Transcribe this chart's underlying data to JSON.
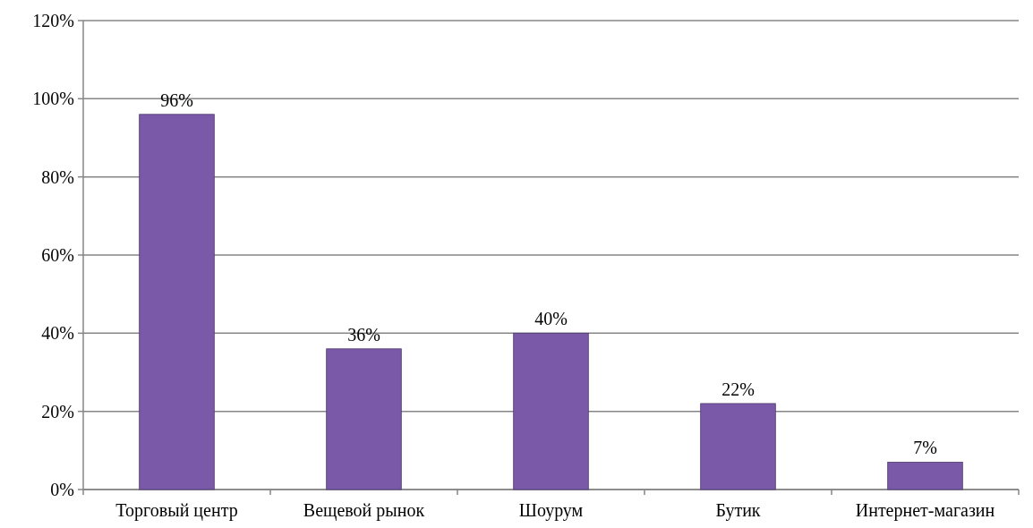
{
  "chart_data": {
    "type": "bar",
    "categories": [
      "Торговый центр",
      "Вещевой рынок",
      "Шоурум",
      "Бутик",
      "Интернет-магазин"
    ],
    "values": [
      96,
      36,
      40,
      22,
      7
    ],
    "value_labels": [
      "96%",
      "36%",
      "40%",
      "22%",
      "7%"
    ],
    "color": "#7a59a8",
    "ylim": [
      0,
      120
    ],
    "yticks": [
      {
        "value": 0,
        "label": "0%"
      },
      {
        "value": 20,
        "label": "20%"
      },
      {
        "value": 40,
        "label": "40%"
      },
      {
        "value": 60,
        "label": "60%"
      },
      {
        "value": 80,
        "label": "80%"
      },
      {
        "value": 100,
        "label": "100%"
      },
      {
        "value": 120,
        "label": "120%"
      }
    ],
    "grid": "y"
  }
}
